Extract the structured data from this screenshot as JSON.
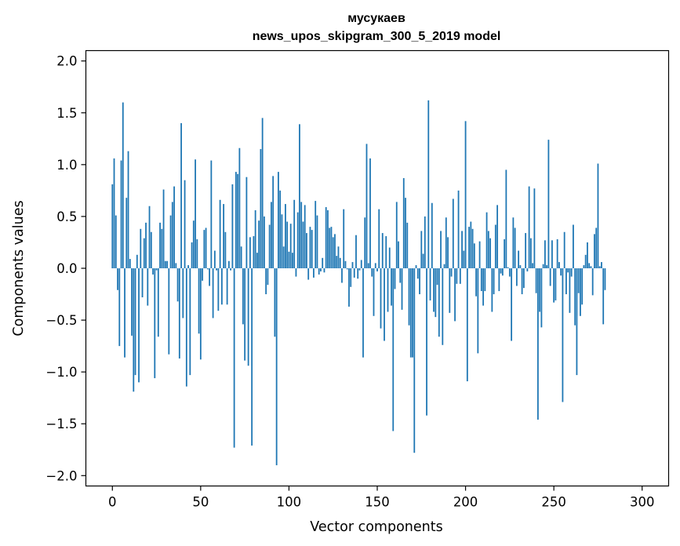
{
  "chart_data": {
    "type": "bar",
    "title_line1": "мусукаев",
    "title_line2": "news_upos_skipgram_300_5_2019 model",
    "xlabel": "Vector components",
    "ylabel": "Components values",
    "xlim": [
      -15,
      315
    ],
    "ylim": [
      -2.1,
      2.1
    ],
    "xticks": [
      0,
      50,
      100,
      150,
      200,
      250,
      300
    ],
    "xtick_labels": [
      "0",
      "50",
      "100",
      "150",
      "200",
      "250",
      "300"
    ],
    "yticks": [
      -2.0,
      -1.5,
      -1.0,
      -0.5,
      0.0,
      0.5,
      1.0,
      1.5,
      2.0
    ],
    "ytick_labels": [
      "−2.0",
      "−1.5",
      "−1.0",
      "−0.5",
      "0.0",
      "0.5",
      "1.0",
      "1.5",
      "2.0"
    ],
    "bar_color": "#1f77b4",
    "grid": false,
    "values": [
      0.81,
      1.06,
      0.51,
      -0.21,
      -0.75,
      1.04,
      1.6,
      -0.86,
      0.68,
      1.13,
      0.09,
      -0.65,
      -1.19,
      -1.03,
      0.13,
      -1.1,
      0.38,
      -0.28,
      0.29,
      0.44,
      -0.36,
      0.6,
      0.35,
      -0.06,
      -1.06,
      -0.02,
      -0.66,
      0.44,
      0.38,
      0.76,
      0.07,
      0.07,
      -0.83,
      0.51,
      0.64,
      0.79,
      0.05,
      -0.32,
      -0.87,
      1.4,
      -0.48,
      0.85,
      -1.14,
      0.03,
      -1.03,
      0.25,
      0.46,
      1.05,
      0.28,
      -0.63,
      -0.88,
      -0.12,
      0.37,
      0.39,
      -0.01,
      -0.17,
      1.04,
      -0.48,
      0.17,
      -0.02,
      -0.41,
      0.66,
      -0.35,
      0.62,
      0.35,
      -0.35,
      0.07,
      -0.02,
      0.81,
      -1.73,
      0.93,
      0.91,
      1.16,
      0.21,
      -0.54,
      -0.89,
      0.88,
      -0.94,
      0.3,
      -1.71,
      0.31,
      0.56,
      0.15,
      0.46,
      1.15,
      1.45,
      0.5,
      -0.25,
      -0.16,
      0.42,
      0.64,
      0.89,
      -0.66,
      -1.9,
      0.93,
      0.75,
      0.52,
      0.21,
      0.62,
      0.45,
      0.16,
      0.43,
      0.15,
      0.66,
      -0.08,
      0.54,
      1.39,
      0.64,
      0.45,
      0.61,
      0.34,
      -0.11,
      0.4,
      0.37,
      -0.09,
      0.65,
      0.51,
      -0.06,
      -0.03,
      0.1,
      -0.04,
      0.59,
      0.56,
      0.39,
      0.4,
      0.3,
      0.33,
      0.12,
      0.21,
      0.1,
      -0.14,
      0.57,
      0.07,
      -0.01,
      -0.37,
      -0.18,
      0.06,
      -0.09,
      0.32,
      -0.1,
      -0.02,
      0.08,
      -0.86,
      0.49,
      1.2,
      0.05,
      1.06,
      -0.08,
      -0.46,
      0.05,
      -0.03,
      0.57,
      -0.58,
      0.34,
      -0.7,
      0.31,
      -0.42,
      0.2,
      -0.36,
      -1.57,
      -0.2,
      0.64,
      0.26,
      -0.14,
      -0.4,
      0.87,
      0.68,
      0.44,
      -0.55,
      -0.86,
      -0.86,
      -1.78,
      0.03,
      -0.1,
      -0.25,
      0.36,
      0.14,
      0.5,
      -1.42,
      1.62,
      -0.31,
      0.63,
      -0.42,
      -0.47,
      -0.16,
      -0.66,
      0.36,
      -0.74,
      0.04,
      0.49,
      0.3,
      -0.43,
      -0.08,
      0.67,
      -0.51,
      -0.15,
      0.75,
      -0.15,
      0.36,
      0.17,
      1.42,
      -1.09,
      0.4,
      0.45,
      0.38,
      0.24,
      -0.27,
      -0.82,
      0.26,
      -0.22,
      -0.36,
      -0.22,
      0.54,
      0.36,
      0.29,
      -0.42,
      -0.25,
      0.42,
      0.61,
      -0.22,
      -0.05,
      -0.07,
      0.28,
      0.95,
      0.01,
      -0.08,
      -0.7,
      0.49,
      0.39,
      -0.17,
      0.17,
      0.03,
      -0.25,
      -0.19,
      0.34,
      -0.03,
      0.79,
      0.29,
      0.05,
      0.77,
      -0.24,
      -1.46,
      -0.42,
      -0.57,
      0.04,
      0.27,
      0.03,
      1.24,
      -0.17,
      0.27,
      -0.33,
      -0.31,
      0.28,
      0.06,
      -0.07,
      -1.29,
      0.35,
      -0.25,
      -0.04,
      -0.43,
      -0.08,
      0.42,
      -0.55,
      -1.03,
      -0.24,
      -0.46,
      -0.35,
      0.03,
      0.13,
      0.25,
      0.05,
      0.02,
      -0.26,
      0.33,
      0.39,
      1.01,
      0.02,
      0.06,
      -0.54,
      -0.21
    ]
  }
}
